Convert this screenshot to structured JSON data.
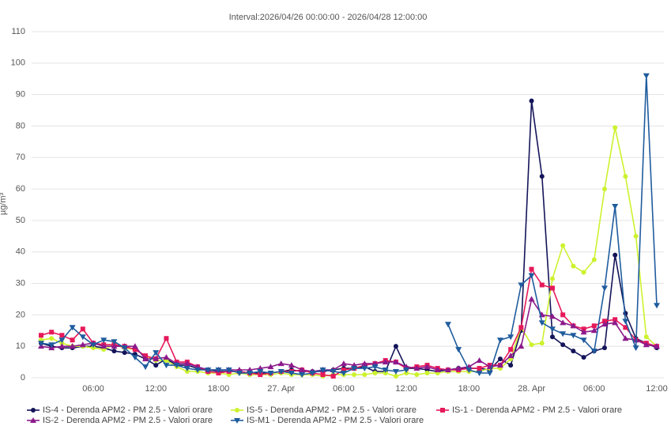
{
  "chart_data": {
    "type": "line",
    "title": "Interval:2026/04/26 00:00:00 - 2026/04/28 12:00:00",
    "y_label": "µg/m³",
    "categories": [
      null,
      null,
      null,
      null,
      null,
      "06:00",
      null,
      null,
      null,
      null,
      null,
      "12:00",
      null,
      null,
      null,
      null,
      null,
      "18:00",
      null,
      null,
      null,
      null,
      null,
      "27. Apr",
      null,
      null,
      null,
      null,
      null,
      "06:00",
      null,
      null,
      null,
      null,
      null,
      "12:00",
      null,
      null,
      null,
      null,
      null,
      "18:00",
      null,
      null,
      null,
      null,
      null,
      "28. Apr",
      null,
      null,
      null,
      null,
      null,
      "06:00",
      null,
      null,
      null,
      null,
      null,
      "12:00"
    ],
    "ylim": [
      0,
      110
    ],
    "yticks": [
      0,
      10,
      20,
      30,
      40,
      50,
      60,
      70,
      80,
      90,
      100,
      110
    ],
    "grid": true,
    "series": [
      {
        "name": "IS-4 - Derenda APM2 - PM 2.5 - Valori orare",
        "color": "#14145a",
        "marker": "circle",
        "values": [
          11,
          10,
          9.5,
          9.5,
          10,
          10,
          9.5,
          8.5,
          8,
          7.5,
          6,
          4,
          6,
          4,
          4,
          3,
          2.5,
          2,
          2,
          2,
          1.5,
          1.5,
          1.5,
          2,
          2.5,
          2,
          2,
          2,
          2.5,
          3,
          3,
          3.5,
          2,
          2,
          10,
          3,
          3,
          2.5,
          2,
          2.5,
          3,
          3,
          3,
          2.5,
          6,
          4,
          15,
          88,
          64,
          13,
          10.5,
          8.5,
          6.5,
          8.5,
          9.5,
          39,
          20.5,
          12.5,
          11,
          9.5
        ]
      },
      {
        "name": "IS-5 - Derenda APM2 - PM 2.5 - Valori orare",
        "color": "#ccf22e",
        "marker": "circle",
        "values": [
          12,
          12.5,
          11,
          10,
          10,
          9.5,
          9,
          10.5,
          9.5,
          9,
          7,
          5.5,
          5.5,
          3.5,
          2,
          2,
          1.5,
          1.5,
          1,
          1.5,
          1,
          1,
          1,
          1.5,
          1,
          1,
          1,
          0.5,
          1,
          1,
          1,
          1,
          1.5,
          1.5,
          0.5,
          1.5,
          1,
          1.5,
          1.5,
          2,
          2,
          2,
          2,
          3,
          3,
          6,
          16,
          10.5,
          11,
          31.5,
          42,
          35.5,
          33.5,
          37.5,
          60,
          79.5,
          64,
          45,
          13,
          10
        ]
      },
      {
        "name": "IS-1 - Derenda APM2 - PM 2.5 - Valori orare",
        "color": "#e6195a",
        "marker": "square",
        "values": [
          13.5,
          14.5,
          13.5,
          12,
          15.5,
          11,
          10.5,
          10.5,
          10,
          9,
          7,
          6,
          12.5,
          5,
          5,
          3.5,
          2,
          1.5,
          2,
          2,
          1.5,
          1,
          1.5,
          2,
          2,
          2.5,
          1.5,
          1,
          0.5,
          2.5,
          3,
          4,
          4.5,
          5.5,
          5,
          3,
          3.5,
          4,
          3,
          2.5,
          2.5,
          3,
          3,
          4,
          4,
          9,
          16,
          34.5,
          29.5,
          28.5,
          20,
          16.5,
          15.5,
          16.5,
          18,
          18.5,
          16,
          12,
          11,
          10
        ]
      },
      {
        "name": "IS-2 - Derenda APM2 - PM 2.5 - Valori orare",
        "color": "#8c1a8c",
        "marker": "triangle",
        "values": [
          10,
          9.5,
          10,
          10,
          10.5,
          11,
          10,
          10,
          10,
          10,
          6,
          6,
          6.5,
          4.5,
          4.5,
          3.5,
          2.5,
          2.5,
          2.5,
          2.5,
          2.5,
          3,
          3.5,
          4.5,
          4,
          2.5,
          2,
          2.5,
          2.5,
          4.5,
          4,
          4.5,
          4.5,
          5,
          5,
          3.5,
          3,
          3.5,
          2.5,
          2.5,
          3,
          3.5,
          5.5,
          3.5,
          4,
          7,
          10,
          25,
          20,
          19.5,
          17.5,
          16.5,
          14.5,
          15,
          17,
          17.5,
          12.5,
          12,
          10.5,
          10
        ]
      },
      {
        "name": "IS-M1 - Derenda APM2 - PM 2.5 - Valori orare",
        "color": "#1f5c9e",
        "marker": "down-triangle",
        "values": [
          11,
          10.5,
          12,
          16,
          13,
          10.5,
          12,
          11.5,
          9.5,
          6.5,
          3.5,
          8,
          4,
          4,
          3,
          2.5,
          2.5,
          2.5,
          2.5,
          1.5,
          1.5,
          2,
          1.5,
          2,
          1.5,
          1,
          1.5,
          2.5,
          2,
          1.5,
          3,
          3,
          3.5,
          2.5,
          2,
          2.5,
          null,
          null,
          null,
          17,
          9,
          2.5,
          1.5,
          1.5,
          12,
          13,
          29.5,
          32.5,
          17.5,
          15.5,
          14,
          13.5,
          12,
          8.5,
          28.5,
          54.5,
          18,
          9.5,
          96,
          23
        ]
      }
    ]
  }
}
